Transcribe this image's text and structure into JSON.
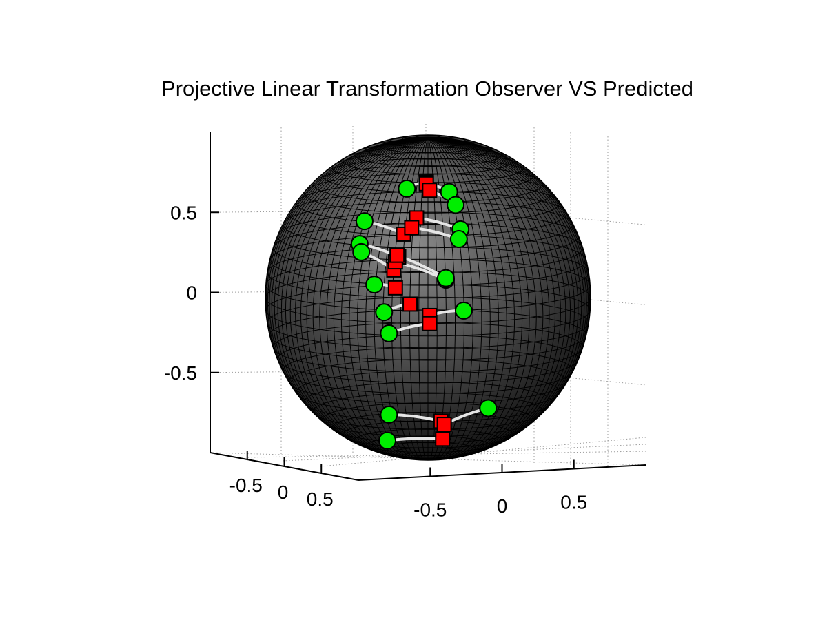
{
  "chart_data": {
    "type": "scatter",
    "title": "Projective Linear Transformation Observer VS Predicted",
    "view": "3d",
    "grid": true,
    "xlim": [
      -1,
      1
    ],
    "ylim": [
      -1,
      1
    ],
    "zlim": [
      -1,
      1
    ],
    "x_ticks": [
      "-0.5",
      "0",
      "0.5"
    ],
    "y_ticks": [
      "-0.5",
      "0",
      "0.5"
    ],
    "z_ticks": [
      "-0.5",
      "0",
      "0.5"
    ],
    "sphere": {
      "radius": 1,
      "center": [
        0,
        0,
        0
      ],
      "surface": "dark gray mesh"
    },
    "colors": {
      "observed": "#00ee00",
      "predicted": "#ff0000",
      "connector": "#e6e6e6",
      "sphere_light": "#8c8c8c",
      "sphere_dark": "#141414"
    },
    "marker_styles": {
      "observed": "circle",
      "predicted": "square"
    },
    "pairs": [
      {
        "observed": [
          -0.13,
          0.67
        ],
        "predicted": [
          -0.01,
          0.71
        ]
      },
      {
        "observed": [
          0.13,
          0.65
        ],
        "predicted": [
          -0.01,
          0.7
        ]
      },
      {
        "observed": [
          0.17,
          0.57
        ],
        "predicted": [
          0.01,
          0.66
        ]
      },
      {
        "observed": [
          -0.39,
          0.47
        ],
        "predicted": [
          -0.15,
          0.39
        ]
      },
      {
        "observed": [
          0.2,
          0.42
        ],
        "predicted": [
          -0.07,
          0.49
        ]
      },
      {
        "observed": [
          0.19,
          0.36
        ],
        "predicted": [
          -0.1,
          0.43
        ]
      },
      {
        "observed": [
          -0.42,
          0.33
        ],
        "predicted": [
          -0.18,
          0.25
        ]
      },
      {
        "observed": [
          -0.41,
          0.28
        ],
        "predicted": [
          -0.21,
          0.17
        ]
      },
      {
        "observed": [
          0.11,
          0.11
        ],
        "predicted": [
          -0.2,
          0.22
        ]
      },
      {
        "observed": [
          0.11,
          0.12
        ],
        "predicted": [
          -0.19,
          0.26
        ]
      },
      {
        "observed": [
          -0.33,
          0.08
        ],
        "predicted": [
          -0.2,
          0.06
        ]
      },
      {
        "observed": [
          -0.27,
          -0.09
        ],
        "predicted": [
          -0.11,
          -0.04
        ]
      },
      {
        "observed": [
          0.22,
          -0.08
        ],
        "predicted": [
          0.01,
          -0.11
        ]
      },
      {
        "observed": [
          -0.24,
          -0.22
        ],
        "predicted": [
          0.01,
          -0.16
        ]
      },
      {
        "observed": [
          -0.24,
          -0.72
        ],
        "predicted": [
          0.08,
          -0.76
        ]
      },
      {
        "observed": [
          0.37,
          -0.68
        ],
        "predicted": [
          0.1,
          -0.78
        ]
      },
      {
        "observed": [
          -0.25,
          -0.88
        ],
        "predicted": [
          0.09,
          -0.87
        ]
      }
    ]
  }
}
